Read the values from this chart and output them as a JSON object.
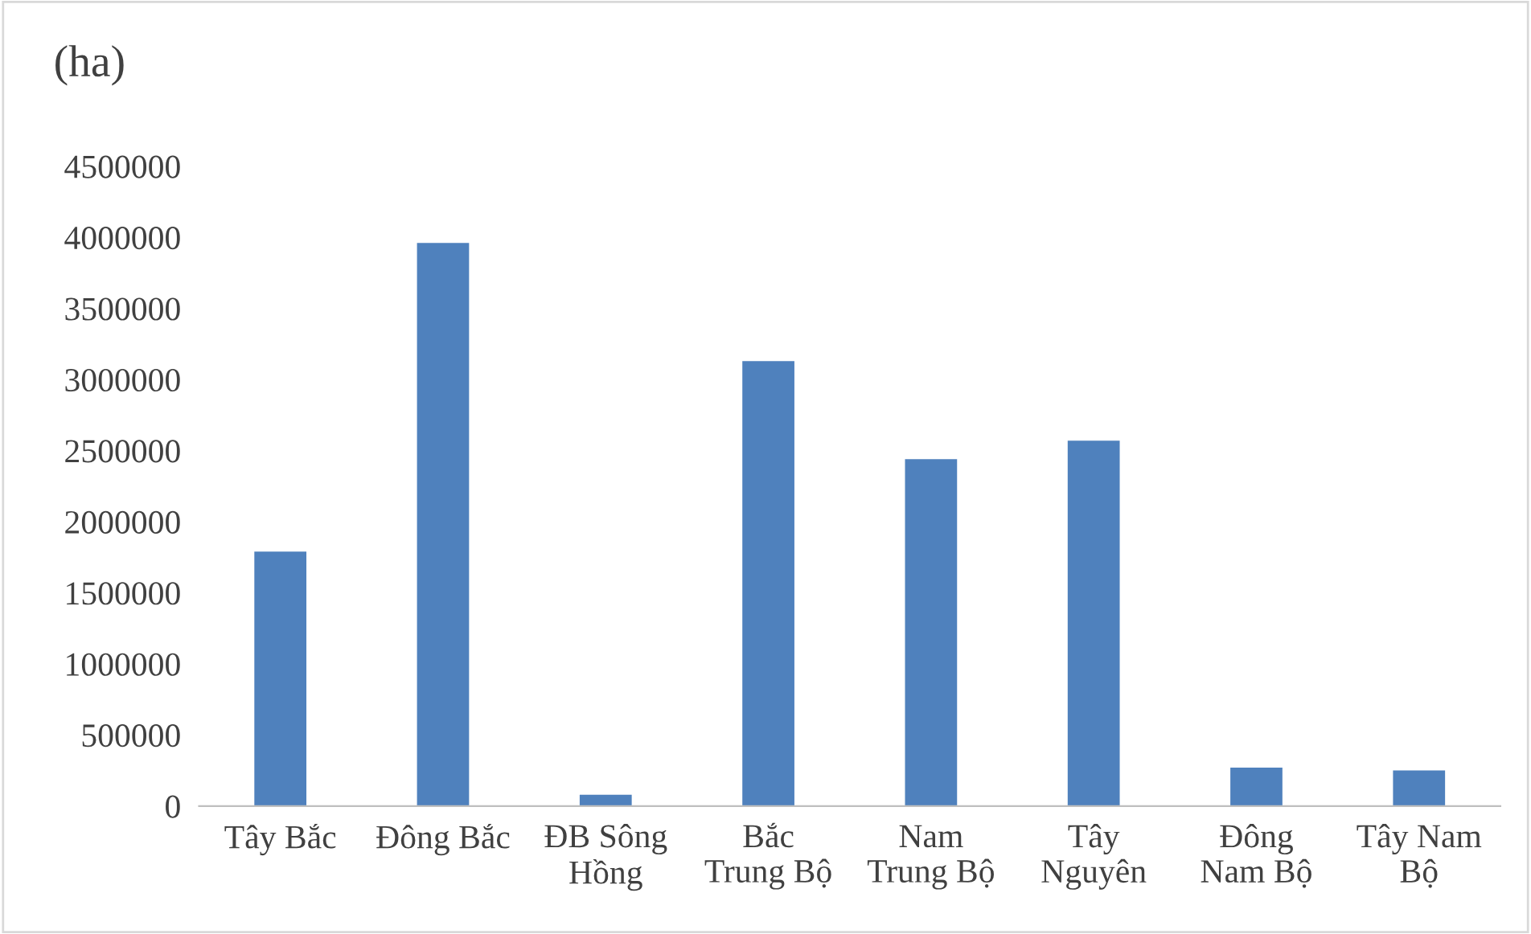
{
  "chart_data": {
    "type": "bar",
    "ylabel": "(ha)",
    "categories": [
      "Tây Bắc",
      "Đông Bắc",
      "ĐB Sông\nHồng",
      "Bắc\nTrung Bộ",
      "Nam\nTrung Bộ",
      "Tây\nNguyên",
      "Đông\nNam Bộ",
      "Tây Nam\nBộ"
    ],
    "values": [
      1790000,
      3960000,
      80000,
      3130000,
      2440000,
      2570000,
      270000,
      250000
    ],
    "color": "#4f81bd",
    "ylim": [
      0,
      4500000
    ],
    "yticks": [
      0,
      500000,
      1000000,
      1500000,
      2000000,
      2500000,
      3000000,
      3500000,
      4000000,
      4500000
    ],
    "grid": false,
    "legend": false
  }
}
